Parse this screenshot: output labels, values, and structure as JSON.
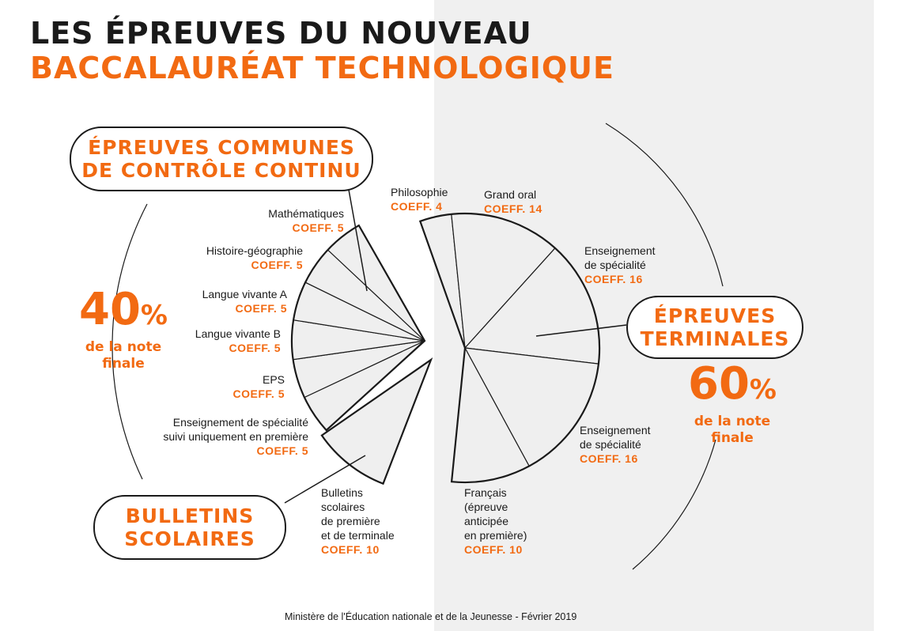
{
  "title": {
    "line1": "LES ÉPREUVES DU NOUVEAU",
    "line2": "BACCALAURÉAT TECHNOLOGIQUE"
  },
  "boxes": {
    "controle": {
      "line1": "ÉPREUVES COMMUNES",
      "line2": "DE CONTRÔLE CONTINU"
    },
    "terminales": {
      "line1": "ÉPREUVES",
      "line2": "TERMINALES"
    },
    "bulletins": {
      "line1": "BULLETINS",
      "line2": "SCOLAIRES"
    }
  },
  "shares": {
    "left": {
      "value": "40",
      "unit": "%",
      "line1": "de la note",
      "line2": "finale"
    },
    "right": {
      "value": "60",
      "unit": "%",
      "line1": "de la note",
      "line2": "finale"
    }
  },
  "subjects": {
    "maths": {
      "name": "Mathématiques",
      "coeff": "COEFF. 5"
    },
    "histgeo": {
      "name": "Histoire-géographie",
      "coeff": "COEFF. 5"
    },
    "lva": {
      "name": "Langue vivante A",
      "coeff": "COEFF. 5"
    },
    "lvb": {
      "name": "Langue vivante B",
      "coeff": "COEFF. 5"
    },
    "eps": {
      "name": "EPS",
      "coeff": "COEFF. 5"
    },
    "specpremiere": {
      "line1": "Enseignement de spécialité",
      "line2": "suivi uniquement en première",
      "coeff": "COEFF. 5"
    },
    "bulletins": {
      "line1": "Bulletins",
      "line2": "scolaires",
      "line3": "de première",
      "line4": "et de terminale",
      "coeff": "COEFF. 10"
    },
    "philo": {
      "name": "Philosophie",
      "coeff": "COEFF. 4"
    },
    "grandoral": {
      "name": "Grand oral",
      "coeff": "COEFF. 14"
    },
    "spec1": {
      "line1": "Enseignement",
      "line2": "de spécialité",
      "coeff": "COEFF. 16"
    },
    "spec2": {
      "line1": "Enseignement",
      "line2": "de spécialité",
      "coeff": "COEFF. 16"
    },
    "francais": {
      "line1": "Français",
      "line2": "(épreuve",
      "line3": "anticipée",
      "line4": "en première)",
      "coeff": "COEFF. 10"
    }
  },
  "chart_data": {
    "type": "pie",
    "groups": [
      {
        "name": "ÉPREUVES COMMUNES DE CONTRÔLE CONTINU",
        "slices": [
          {
            "label": "Mathématiques",
            "value": 5
          },
          {
            "label": "Histoire-géographie",
            "value": 5
          },
          {
            "label": "Langue vivante A",
            "value": 5
          },
          {
            "label": "Langue vivante B",
            "value": 5
          },
          {
            "label": "EPS",
            "value": 5
          },
          {
            "label": "Enseignement de spécialité suivi uniquement en première",
            "value": 5
          }
        ]
      },
      {
        "name": "BULLETINS SCOLAIRES",
        "slices": [
          {
            "label": "Bulletins scolaires de première et de terminale",
            "value": 10
          }
        ]
      },
      {
        "name": "ÉPREUVES TERMINALES",
        "slices": [
          {
            "label": "Philosophie",
            "value": 4
          },
          {
            "label": "Grand oral",
            "value": 14
          },
          {
            "label": "Enseignement de spécialité",
            "value": 16
          },
          {
            "label": "Enseignement de spécialité",
            "value": 16
          },
          {
            "label": "Français (épreuve anticipée en première)",
            "value": 10
          }
        ]
      }
    ]
  },
  "footer": "Ministère de l'Éducation nationale et de la Jeunesse - Février 2019"
}
